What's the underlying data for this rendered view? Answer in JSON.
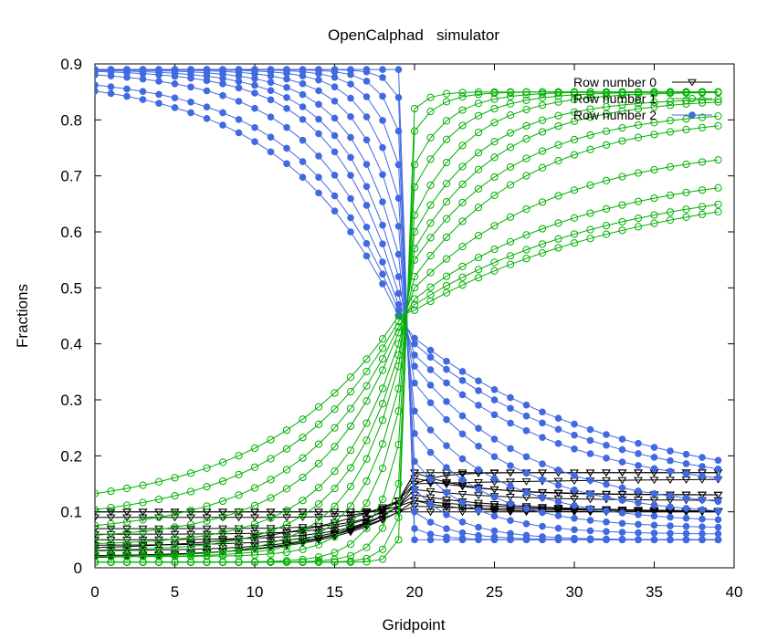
{
  "chart_data": {
    "type": "line",
    "title": "OpenCalphad   simulator",
    "xlabel": "Gridpoint",
    "ylabel": "Fractions",
    "xlim": [
      0,
      40
    ],
    "ylim": [
      0,
      0.9
    ],
    "xticks": [
      "0",
      "5",
      "10",
      "15",
      "20",
      "25",
      "30",
      "35",
      "40"
    ],
    "yticks": [
      "0",
      "0.1",
      "0.2",
      "0.3",
      "0.4",
      "0.5",
      "0.6",
      "0.7",
      "0.8",
      "0.9"
    ],
    "x": [
      0,
      1,
      2,
      3,
      4,
      5,
      6,
      7,
      8,
      9,
      10,
      11,
      12,
      13,
      14,
      15,
      16,
      17,
      18,
      19,
      20,
      21,
      22,
      23,
      24,
      25,
      26,
      27,
      28,
      29,
      30,
      31,
      32,
      33,
      34,
      35,
      36,
      37,
      38,
      39
    ],
    "legend_position": "top-right",
    "series": [
      {
        "name": "Row number 0",
        "color": "#000000",
        "marker": "triangle-down",
        "curves": [
          {
            "left_start": 0.1,
            "left_end": 0.11,
            "right_start": 0.15,
            "right_end": 0.17,
            "width": 0.8
          },
          {
            "left_start": 0.1,
            "left_end": 0.1,
            "right_start": 0.12,
            "right_end": 0.1,
            "width": 1.5
          },
          {
            "left_start": 0.09,
            "left_end": 0.12,
            "right_start": 0.17,
            "right_end": 0.17,
            "width": 1.5
          },
          {
            "left_start": 0.07,
            "left_end": 0.12,
            "right_start": 0.17,
            "right_end": 0.13,
            "width": 2.0
          },
          {
            "left_start": 0.06,
            "left_end": 0.12,
            "right_start": 0.16,
            "right_end": 0.13,
            "width": 2.5
          },
          {
            "left_start": 0.05,
            "left_end": 0.11,
            "right_start": 0.14,
            "right_end": 0.12,
            "width": 3.0
          },
          {
            "left_start": 0.04,
            "left_end": 0.11,
            "right_start": 0.13,
            "right_end": 0.1,
            "width": 3.5
          },
          {
            "left_start": 0.03,
            "left_end": 0.11,
            "right_start": 0.12,
            "right_end": 0.1,
            "width": 4.0
          },
          {
            "left_start": 0.02,
            "left_end": 0.1,
            "right_start": 0.11,
            "right_end": 0.1,
            "width": 5.0
          },
          {
            "left_start": 0.015,
            "left_end": 0.1,
            "right_start": 0.1,
            "right_end": 0.1,
            "width": 6.0
          },
          {
            "left_start": 0.03,
            "left_end": 0.12,
            "right_start": 0.15,
            "right_end": 0.16,
            "width": 7.0
          }
        ]
      },
      {
        "name": "Row number 1",
        "color": "#00b000",
        "marker": "circle-open",
        "curves": [
          {
            "left_start": 0.01,
            "left_end": 0.05,
            "right_start": 0.82,
            "right_end": 0.85,
            "width": 0.5
          },
          {
            "left_start": 0.01,
            "left_end": 0.09,
            "right_start": 0.78,
            "right_end": 0.85,
            "width": 0.8
          },
          {
            "left_start": 0.01,
            "left_end": 0.15,
            "right_start": 0.72,
            "right_end": 0.85,
            "width": 1.2
          },
          {
            "left_start": 0.01,
            "left_end": 0.22,
            "right_start": 0.68,
            "right_end": 0.85,
            "width": 1.6
          },
          {
            "left_start": 0.02,
            "left_end": 0.28,
            "right_start": 0.63,
            "right_end": 0.85,
            "width": 2.0
          },
          {
            "left_start": 0.02,
            "left_end": 0.32,
            "right_start": 0.6,
            "right_end": 0.84,
            "width": 2.5
          },
          {
            "left_start": 0.02,
            "left_end": 0.36,
            "right_start": 0.57,
            "right_end": 0.84,
            "width": 3.0
          },
          {
            "left_start": 0.03,
            "left_end": 0.38,
            "right_start": 0.55,
            "right_end": 0.82,
            "width": 3.5
          },
          {
            "left_start": 0.04,
            "left_end": 0.4,
            "right_start": 0.52,
            "right_end": 0.81,
            "width": 4.0
          },
          {
            "left_start": 0.05,
            "left_end": 0.42,
            "right_start": 0.5,
            "right_end": 0.76,
            "width": 5.0
          },
          {
            "left_start": 0.06,
            "left_end": 0.43,
            "right_start": 0.48,
            "right_end": 0.72,
            "width": 6.0
          },
          {
            "left_start": 0.08,
            "left_end": 0.44,
            "right_start": 0.47,
            "right_end": 0.7,
            "width": 7.0
          },
          {
            "left_start": 0.1,
            "left_end": 0.45,
            "right_start": 0.46,
            "right_end": 0.7,
            "width": 8.0
          }
        ]
      },
      {
        "name": "Row number 2",
        "color": "#4169e1",
        "marker": "circle-filled",
        "curves": [
          {
            "left_start": 0.89,
            "left_end": 0.89,
            "right_start": 0.05,
            "right_end": 0.05,
            "width": 0.3
          },
          {
            "left_start": 0.89,
            "left_end": 0.84,
            "right_start": 0.07,
            "right_end": 0.05,
            "width": 0.8
          },
          {
            "left_start": 0.89,
            "left_end": 0.78,
            "right_start": 0.1,
            "right_end": 0.05,
            "width": 1.2
          },
          {
            "left_start": 0.89,
            "left_end": 0.72,
            "right_start": 0.14,
            "right_end": 0.05,
            "width": 1.6
          },
          {
            "left_start": 0.89,
            "left_end": 0.66,
            "right_start": 0.19,
            "right_end": 0.06,
            "width": 2.0
          },
          {
            "left_start": 0.89,
            "left_end": 0.61,
            "right_start": 0.24,
            "right_end": 0.07,
            "width": 2.5
          },
          {
            "left_start": 0.89,
            "left_end": 0.56,
            "right_start": 0.28,
            "right_end": 0.08,
            "width": 3.0
          },
          {
            "left_start": 0.89,
            "left_end": 0.52,
            "right_start": 0.33,
            "right_end": 0.09,
            "width": 3.5
          },
          {
            "left_start": 0.89,
            "left_end": 0.49,
            "right_start": 0.36,
            "right_end": 0.1,
            "width": 4.0
          },
          {
            "left_start": 0.89,
            "left_end": 0.47,
            "right_start": 0.38,
            "right_end": 0.13,
            "width": 5.0
          },
          {
            "left_start": 0.88,
            "left_end": 0.46,
            "right_start": 0.4,
            "right_end": 0.13,
            "width": 6.0
          },
          {
            "left_start": 0.88,
            "left_end": 0.45,
            "right_start": 0.41,
            "right_end": 0.13,
            "width": 7.0
          }
        ]
      }
    ]
  }
}
